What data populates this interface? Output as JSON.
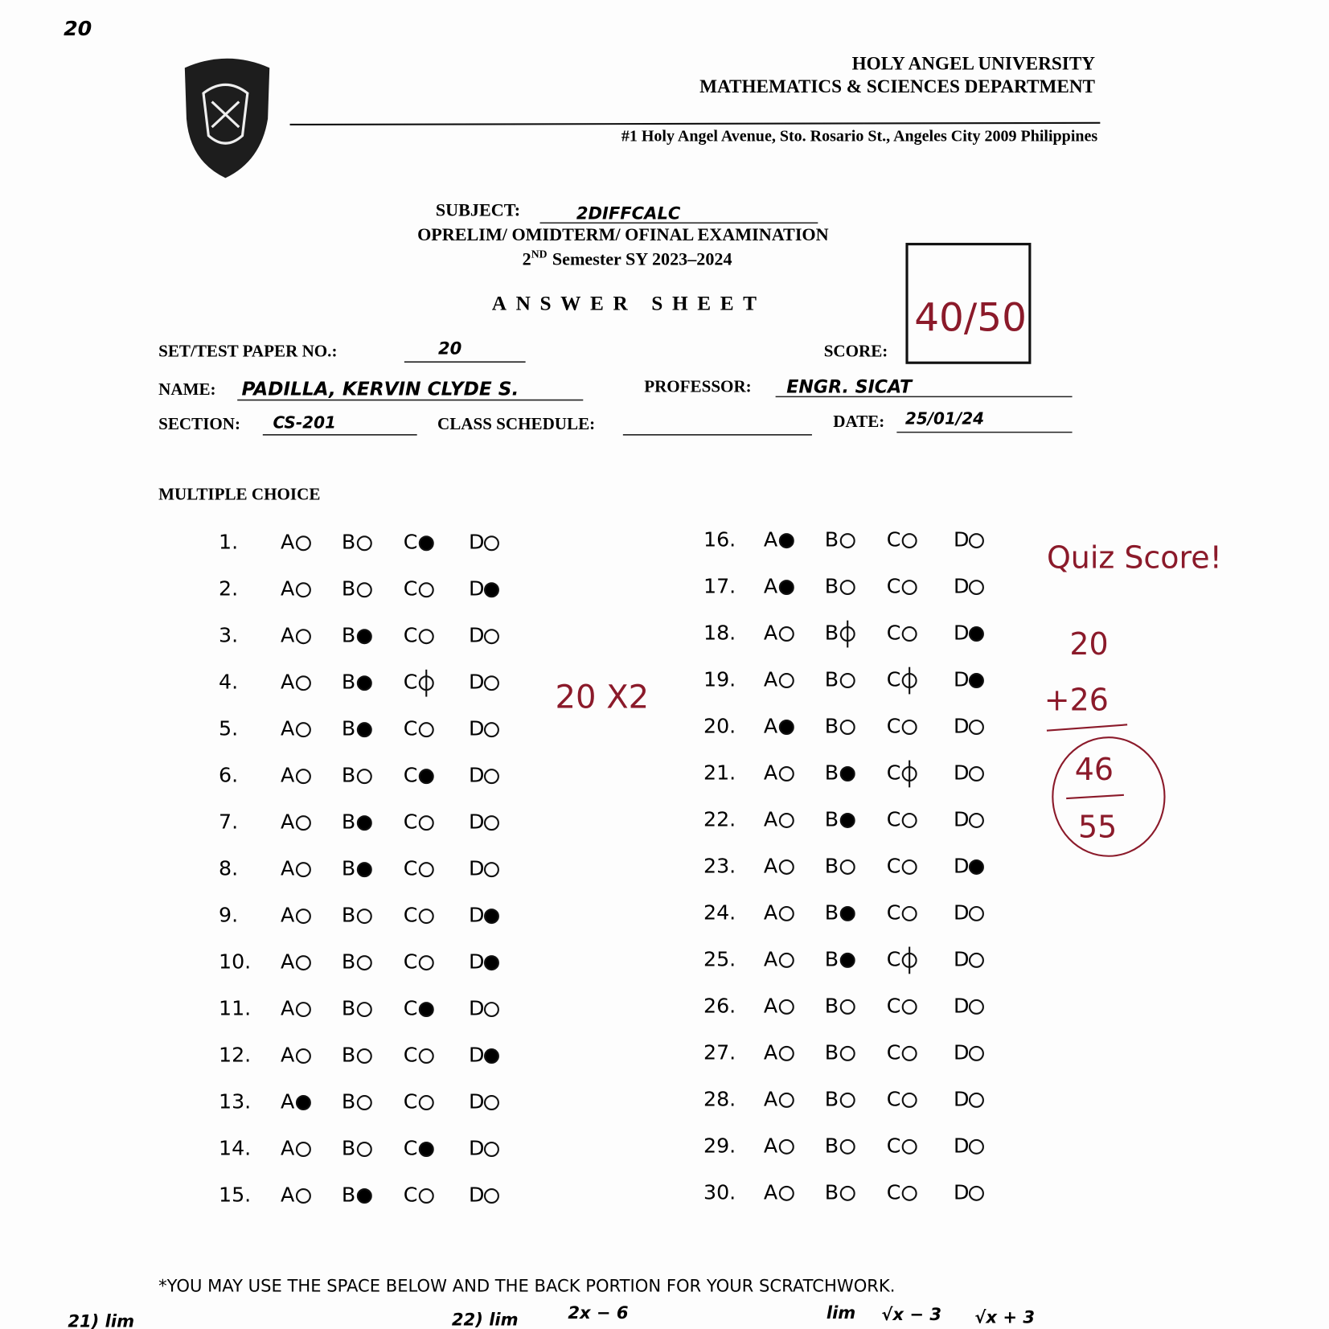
{
  "header": {
    "corner_number": "20",
    "university": "HOLY ANGEL UNIVERSITY",
    "department": "MATHEMATICS & SCIENCES DEPARTMENT",
    "address": "#1 Holy Angel Avenue, Sto. Rosario St., Angeles City 2009 Philippines"
  },
  "exam": {
    "subject_label": "SUBJECT:",
    "subject": "2DIFFCALC",
    "exam_types": "OPRELIM/ OMIDTERM/ OFINAL EXAMINATION",
    "semester_ordinal": "2",
    "semester_suffix": "ND",
    "semester_rest": "Semester SY 2023–2024",
    "title": "ANSWER SHEET"
  },
  "fields": {
    "set_label": "SET/TEST PAPER NO.:",
    "set_value": "20",
    "score_label": "SCORE:",
    "score_value": "40/50",
    "name_label": "NAME:",
    "name_value": "PADILLA, KERVIN CLYDE S.",
    "professor_label": "PROFESSOR:",
    "professor_value": "ENGR. SICAT",
    "section_label": "SECTION:",
    "section_value": "CS-201",
    "schedule_label": "CLASS SCHEDULE:",
    "date_label": "DATE:",
    "date_value": "25/01/24"
  },
  "multiple_choice": {
    "title": "MULTIPLE CHOICE",
    "choices": [
      "A",
      "B",
      "C",
      "D"
    ],
    "questions": [
      {
        "number": "1.",
        "filled": [
          "C"
        ]
      },
      {
        "number": "2.",
        "filled": [
          "D"
        ]
      },
      {
        "number": "3.",
        "filled": [
          "B"
        ]
      },
      {
        "number": "4.",
        "filled": [
          "B"
        ],
        "struck": [
          "C"
        ]
      },
      {
        "number": "5.",
        "filled": [
          "B"
        ]
      },
      {
        "number": "6.",
        "filled": [
          "C"
        ]
      },
      {
        "number": "7.",
        "filled": [
          "B"
        ]
      },
      {
        "number": "8.",
        "filled": [
          "B"
        ]
      },
      {
        "number": "9.",
        "filled": [
          "D"
        ]
      },
      {
        "number": "10.",
        "filled": [
          "D"
        ]
      },
      {
        "number": "11.",
        "filled": [
          "C"
        ]
      },
      {
        "number": "12.",
        "filled": [
          "D"
        ]
      },
      {
        "number": "13.",
        "filled": [
          "A"
        ]
      },
      {
        "number": "14.",
        "filled": [
          "C"
        ]
      },
      {
        "number": "15.",
        "filled": [
          "B"
        ]
      },
      {
        "number": "16.",
        "filled": [
          "A"
        ]
      },
      {
        "number": "17.",
        "filled": [
          "A"
        ]
      },
      {
        "number": "18.",
        "filled": [
          "D"
        ],
        "struck": [
          "B"
        ]
      },
      {
        "number": "19.",
        "filled": [
          "D"
        ],
        "struck": [
          "C"
        ]
      },
      {
        "number": "20.",
        "filled": [
          "A"
        ]
      },
      {
        "number": "21.",
        "filled": [
          "B"
        ],
        "struck": [
          "C"
        ]
      },
      {
        "number": "22.",
        "filled": [
          "B"
        ]
      },
      {
        "number": "23.",
        "filled": [
          "D"
        ]
      },
      {
        "number": "24.",
        "filled": [
          "B"
        ]
      },
      {
        "number": "25.",
        "filled": [
          "B"
        ],
        "struck": [
          "C"
        ]
      },
      {
        "number": "26."
      },
      {
        "number": "27."
      },
      {
        "number": "28."
      },
      {
        "number": "29."
      },
      {
        "number": "30."
      }
    ]
  },
  "annotations": {
    "multiplier": "20 X2",
    "quiz_label": "Quiz Score!",
    "quiz_a": "20",
    "quiz_b": "+26",
    "quiz_sum": "46",
    "quiz_total": "55"
  },
  "footer": {
    "note": "*YOU MAY USE THE SPACE BELOW AND THE BACK PORTION FOR YOUR SCRATCHWORK.",
    "scratch_1": "21) lim",
    "scratch_2": "22) lim",
    "scratch_3": "2x − 6",
    "scratch_4": "lim",
    "scratch_5": "√x − 3",
    "scratch_6": "√x + 3"
  }
}
